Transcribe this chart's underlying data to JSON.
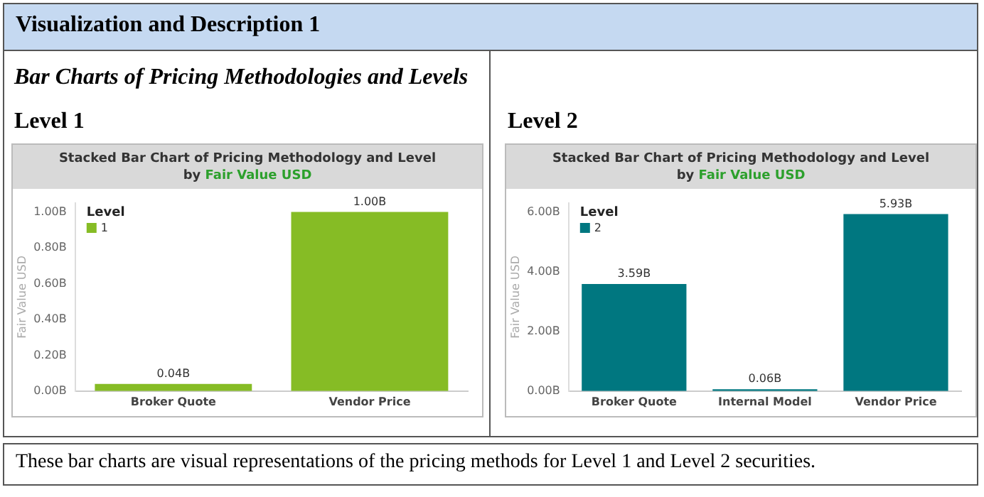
{
  "chart_data": [
    {
      "type": "bar",
      "title": "Stacked Bar Chart of Pricing Methodology and Level",
      "subtitle": "by Fair Value USD",
      "ylabel": "Fair Value USD",
      "legend_title": "Level",
      "categories": [
        "Broker Quote",
        "Vendor Price"
      ],
      "series": [
        {
          "name": "1",
          "color": "#86bc25",
          "values": [
            0.04,
            1.0
          ],
          "value_labels": [
            "0.04B",
            "1.00B"
          ]
        }
      ],
      "ylim": [
        0,
        1.05
      ],
      "yticks": [
        {
          "value": 0,
          "label": "0.00B"
        },
        {
          "value": 0.2,
          "label": "0.20B"
        },
        {
          "value": 0.4,
          "label": "0.40B"
        },
        {
          "value": 0.6,
          "label": "0.60B"
        },
        {
          "value": 0.8,
          "label": "0.80B"
        },
        {
          "value": 1,
          "label": "1.00B"
        }
      ],
      "grid": false,
      "legend": "top left",
      "annotations": [
        "Visualization and Description 1",
        "Bar Charts of Pricing Methodologies and Levels",
        "Level 1",
        "These bar charts are visual representations of the pricing methods for Level 1 and Level 2 securities."
      ]
    },
    {
      "type": "bar",
      "title": "Stacked Bar Chart of Pricing Methodology and Level",
      "subtitle": "by Fair Value USD",
      "ylabel": "Fair Value USD",
      "legend_title": "Level",
      "categories": [
        "Broker Quote",
        "Internal Model",
        "Vendor Price"
      ],
      "series": [
        {
          "name": "2",
          "color": "#007780",
          "values": [
            3.59,
            0.06,
            5.93
          ],
          "value_labels": [
            "3.59B",
            "0.06B",
            "5.93B"
          ]
        }
      ],
      "ylim": [
        0,
        6.3
      ],
      "yticks": [
        {
          "value": 0,
          "label": "0.00B"
        },
        {
          "value": 2,
          "label": "2.00B"
        },
        {
          "value": 4,
          "label": "4.00B"
        },
        {
          "value": 6,
          "label": "6.00B"
        }
      ],
      "grid": false,
      "legend": "top left",
      "annotations": [
        "Level 2"
      ]
    }
  ]
}
